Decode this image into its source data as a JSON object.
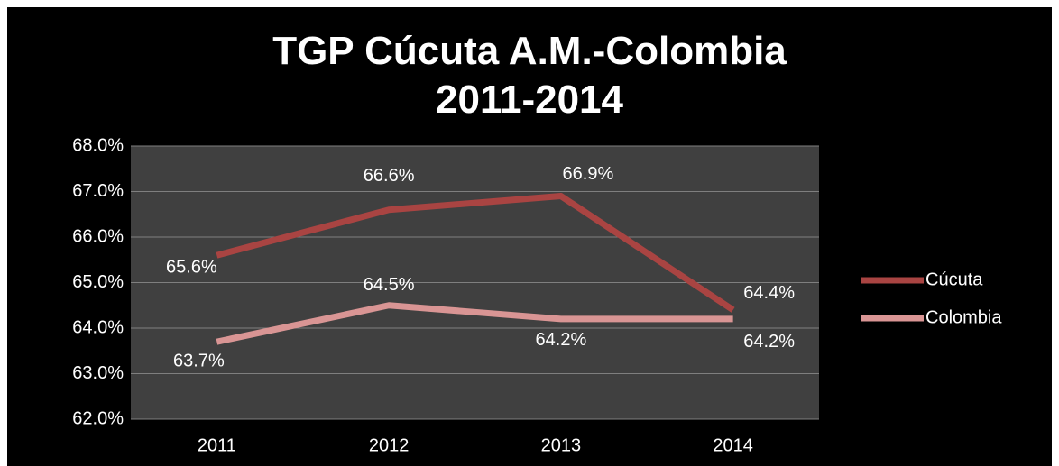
{
  "chart_data": {
    "type": "line",
    "title": "TGP Cúcuta A.M.-Colombia\n2011-2014",
    "categories": [
      "2011",
      "2012",
      "2013",
      "2014"
    ],
    "series": [
      {
        "name": "Cúcuta",
        "color": "#a94442",
        "values": [
          65.6,
          66.6,
          66.9,
          64.4
        ],
        "value_labels": [
          "65.6%",
          "66.6%",
          "66.9%",
          "64.4%"
        ]
      },
      {
        "name": "Colombia",
        "color": "#d99594",
        "values": [
          63.7,
          64.5,
          64.2,
          64.2
        ],
        "value_labels": [
          "63.7%",
          "64.5%",
          "64.2%",
          "64.2%"
        ]
      }
    ],
    "ylim": [
      62,
      68
    ],
    "yticks": [
      {
        "value": 62,
        "label": "62.0%"
      },
      {
        "value": 63,
        "label": "63.0%"
      },
      {
        "value": 64,
        "label": "64.0%"
      },
      {
        "value": 65,
        "label": "65.0%"
      },
      {
        "value": 66,
        "label": "66.0%"
      },
      {
        "value": 67,
        "label": "67.0%"
      },
      {
        "value": 68,
        "label": "68.0%"
      }
    ],
    "grid": true,
    "legend": "right"
  }
}
